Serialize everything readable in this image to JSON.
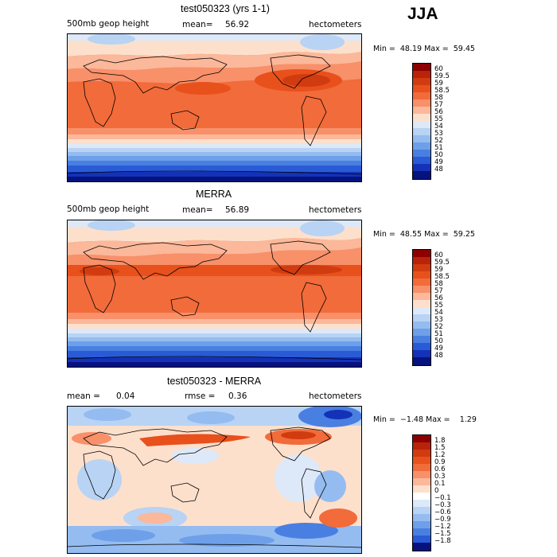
{
  "season": "JJA",
  "panels": [
    {
      "title": "test050323 (yrs 1-1)",
      "left_label": "500mb geop height",
      "mean_label": "mean=",
      "mean_value": "56.92",
      "unit": "hectometers",
      "minmax": "Min =  48.19 Max =  59.45",
      "colorbar": {
        "labels": [
          "60",
          "59.5",
          "59",
          "58.5",
          "58",
          "57",
          "56",
          "55",
          "54",
          "53",
          "52",
          "51",
          "50",
          "49",
          "48"
        ],
        "colors": [
          "#8b0000",
          "#b8230a",
          "#d13b10",
          "#e8501c",
          "#f26b3a",
          "#f8906a",
          "#fbb89a",
          "#fde0cc",
          "#dde9f8",
          "#b8d3f4",
          "#94bcf0",
          "#6e9fe9",
          "#4a7fe2",
          "#2a5bd6",
          "#1432b8",
          "#06127e"
        ]
      },
      "colors": {
        "polar_south": [
          "#06127e",
          "#1432b8",
          "#2a5bd6",
          "#4a7fe2",
          "#6e9fe9",
          "#94bcf0",
          "#b8d3f4",
          "#dde9f8",
          "#fde0cc",
          "#fbb89a",
          "#f8906a"
        ],
        "band_core": "#f26b3a",
        "band_hot": "#e8501c",
        "arctic": "#b8d3f4"
      }
    },
    {
      "title": "MERRA",
      "left_label": "500mb geop height",
      "mean_label": "mean=",
      "mean_value": "56.89",
      "unit": "hectometers",
      "minmax": "Min =  48.55 Max =  59.25",
      "colorbar": {
        "labels": [
          "60",
          "59.5",
          "59",
          "58.5",
          "58",
          "57",
          "56",
          "55",
          "54",
          "53",
          "52",
          "51",
          "50",
          "49",
          "48"
        ],
        "colors": [
          "#8b0000",
          "#b8230a",
          "#d13b10",
          "#e8501c",
          "#f26b3a",
          "#f8906a",
          "#fbb89a",
          "#fde0cc",
          "#dde9f8",
          "#b8d3f4",
          "#94bcf0",
          "#6e9fe9",
          "#4a7fe2",
          "#2a5bd6",
          "#1432b8",
          "#06127e"
        ]
      }
    },
    {
      "title": "test050323 - MERRA",
      "left_label": "mean =",
      "mean_label": "0.04",
      "rmse_label": "rmse =",
      "rmse_value": "0.36",
      "unit": "hectometers",
      "minmax": "Min =  −1.48 Max =    1.29",
      "colorbar": {
        "labels": [
          "1.8",
          "1.5",
          "1.2",
          "0.9",
          "0.6",
          "0.3",
          "0.1",
          "0",
          "−0.1",
          "−0.3",
          "−0.6",
          "−0.9",
          "−1.2",
          "−1.5",
          "−1.8"
        ],
        "colors": [
          "#8b0000",
          "#b8230a",
          "#d13b10",
          "#e8501c",
          "#f26b3a",
          "#f8906a",
          "#fbb89a",
          "#fde0cc",
          "#ffffff",
          "#dde9f8",
          "#b8d3f4",
          "#94bcf0",
          "#6e9fe9",
          "#4a7fe2",
          "#2a5bd6",
          "#06127e"
        ]
      }
    }
  ]
}
